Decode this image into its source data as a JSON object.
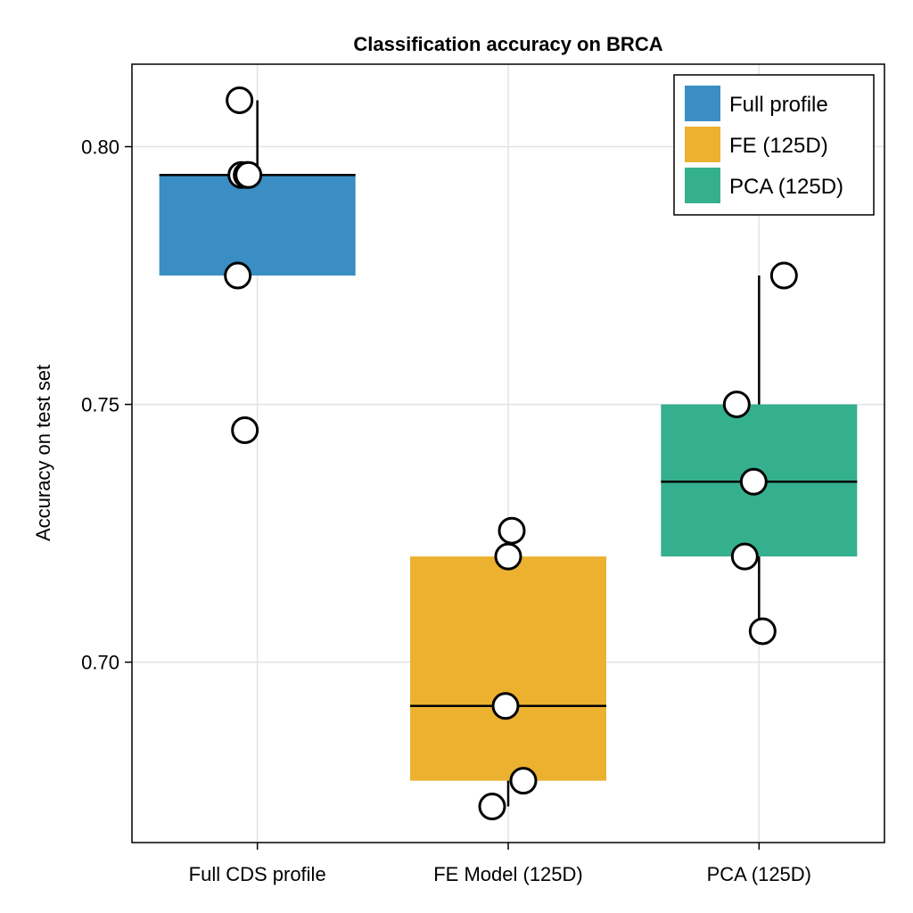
{
  "chart_data": {
    "type": "box",
    "title": "Classification accuracy on BRCA",
    "xlabel": "",
    "ylabel": "Accuracy on test set",
    "ylim": [
      0.665,
      0.816
    ],
    "yticks": [
      "0.70",
      "0.75",
      "0.80"
    ],
    "ytick_values": [
      0.7,
      0.75,
      0.8
    ],
    "grid": true,
    "legend_position": "top-right",
    "categories": [
      "Full CDS profile",
      "FE Model (125D)",
      "PCA (125D)"
    ],
    "series": [
      {
        "name": "Full profile",
        "category": "Full CDS profile",
        "color": "#3a8ec3",
        "q1": 0.775,
        "median": 0.7945,
        "q3": 0.7945,
        "whisker_low": 0.775,
        "whisker_high": 0.809,
        "points": [
          0.809,
          0.7945,
          0.7945,
          0.7945,
          0.775,
          0.745
        ]
      },
      {
        "name": "FE (125D)",
        "category": "FE Model (125D)",
        "color": "#ebb12f",
        "q1": 0.677,
        "median": 0.6915,
        "q3": 0.7205,
        "whisker_low": 0.672,
        "whisker_high": 0.7205,
        "points": [
          0.7255,
          0.7205,
          0.6915,
          0.677,
          0.672
        ]
      },
      {
        "name": "PCA (125D)",
        "category": "PCA (125D)",
        "color": "#35b08e",
        "q1": 0.7205,
        "median": 0.735,
        "q3": 0.75,
        "whisker_low": 0.706,
        "whisker_high": 0.775,
        "points": [
          0.775,
          0.75,
          0.735,
          0.7205,
          0.706
        ]
      }
    ]
  }
}
